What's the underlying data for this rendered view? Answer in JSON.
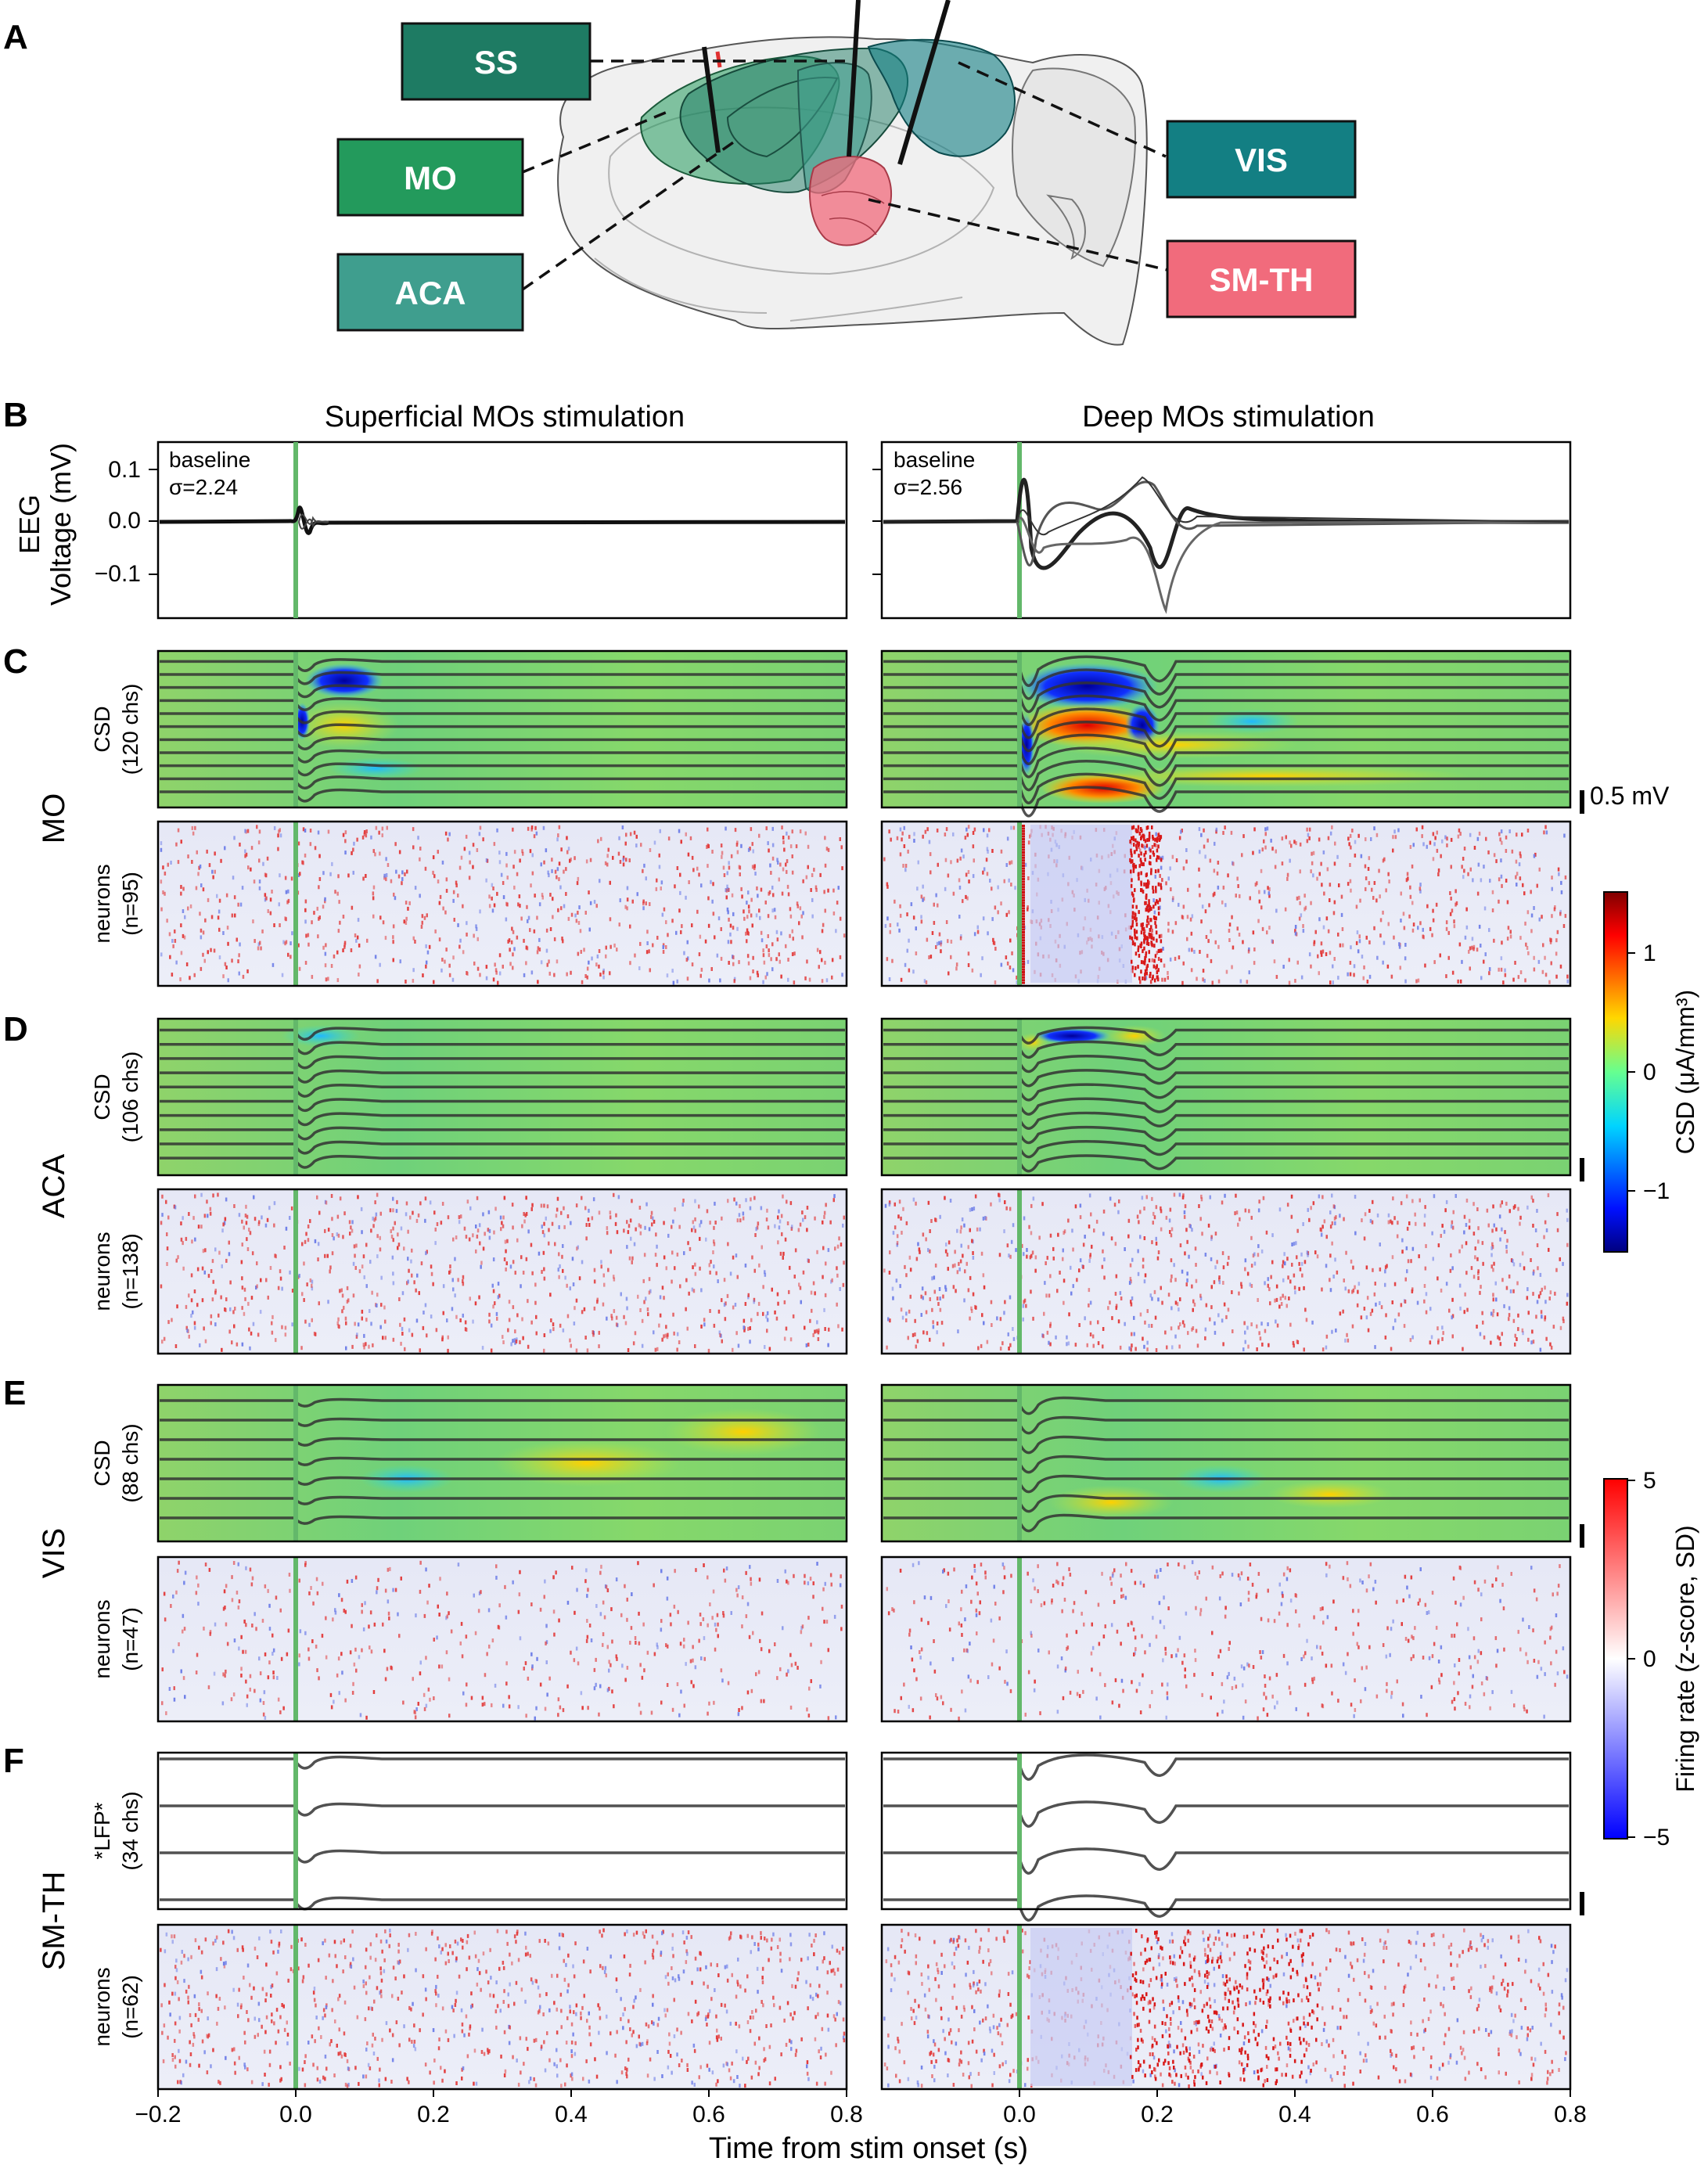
{
  "panel_letters": {
    "A": "A",
    "B": "B",
    "C": "C",
    "D": "D",
    "E": "E",
    "F": "F"
  },
  "brain_regions": {
    "SS": {
      "label": "SS",
      "color": "#1e7b63"
    },
    "MO": {
      "label": "MO",
      "color": "#239a5c"
    },
    "ACA": {
      "label": "ACA",
      "color": "#3f9e8e"
    },
    "VIS": {
      "label": "VIS",
      "color": "#137f83"
    },
    "SMTH": {
      "label": "SM-TH",
      "color": "#f16b7c"
    }
  },
  "columns": {
    "left": "Superficial MOs stimulation",
    "right": "Deep MOs stimulation"
  },
  "eeg": {
    "ylabel_line1": "EEG",
    "ylabel_line2": "Voltage (mV)",
    "yticks": [
      "0.1",
      "0.0",
      "−0.1"
    ],
    "left_stat_line1": "baseline",
    "left_stat_line2": "σ=2.24",
    "right_stat_line1": "baseline",
    "right_stat_line2": "σ=2.56"
  },
  "rows": {
    "MO": {
      "region": "MO",
      "csd_line1": "CSD",
      "csd_line2": "(120 chs)",
      "neu_line1": "neurons",
      "neu_line2": "(n=95)"
    },
    "ACA": {
      "region": "ACA",
      "csd_line1": "CSD",
      "csd_line2": "(106 chs)",
      "neu_line1": "neurons",
      "neu_line2": "(n=138)"
    },
    "VIS": {
      "region": "VIS",
      "csd_line1": "CSD",
      "csd_line2": "(88 chs)",
      "neu_line1": "neurons",
      "neu_line2": "(n=47)"
    },
    "SMTH": {
      "region": "SM-TH",
      "csd_line1": "*LFP*",
      "csd_line2": "(34 chs)",
      "neu_line1": "neurons",
      "neu_line2": "(n=62)"
    }
  },
  "scalebar_label": "0.5 mV",
  "csd_colorbar": {
    "label": "CSD (μA/mm³)",
    "ticks": [
      "1",
      "0",
      "−1"
    ]
  },
  "fr_colorbar": {
    "label": "Firing rate (z-score, SD)",
    "ticks": [
      "5",
      "0",
      "−5"
    ]
  },
  "xaxis": {
    "label": "Time from stim onset (s)",
    "left_ticks": [
      "−0.2",
      "0.0",
      "0.2",
      "0.4",
      "0.6",
      "0.8"
    ],
    "right_ticks": [
      "0.0",
      "0.2",
      "0.4",
      "0.6",
      "0.8"
    ]
  }
}
